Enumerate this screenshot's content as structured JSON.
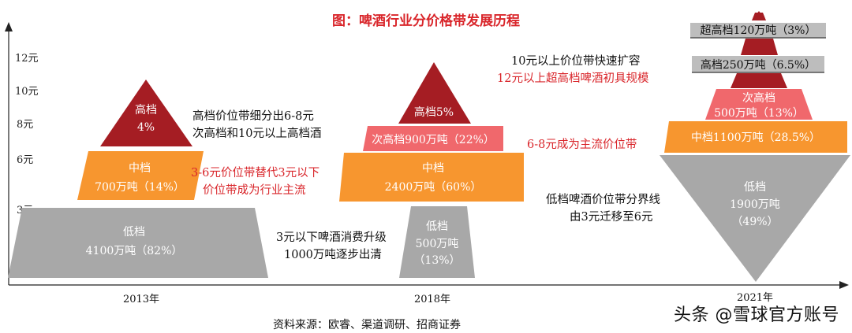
{
  "title": "图：啤酒行业分价格带发展历程",
  "y_ticks": [
    "12元",
    "10元",
    "8元",
    "6元",
    "3元"
  ],
  "years": [
    "2013年",
    "2018年",
    "2021年"
  ],
  "source": "资料来源：欧睿、渠道调研、招商证券",
  "watermark": "头条 @雪球官方账号",
  "colors": {
    "high": "#a51d23",
    "sub_high": "#f0686c",
    "mid": "#f7962f",
    "low": "#a8a8a8",
    "red_text": "#d9262b"
  },
  "y2013": {
    "high": {
      "name": "高档",
      "share": "4%"
    },
    "mid": {
      "name": "中档",
      "detail": "700万吨（14%）"
    },
    "low": {
      "name": "低档",
      "detail": "4100万吨（82%）"
    }
  },
  "y2018": {
    "high": {
      "text": "高档5%"
    },
    "sub_high": {
      "text": "次高档900万吨（22%）"
    },
    "mid": {
      "name": "中档",
      "detail": "2400万吨（60%）"
    },
    "low": {
      "name": "低档",
      "detail1": "500万吨",
      "detail2": "（13%）"
    }
  },
  "y2021": {
    "super_high": {
      "text": "超高档120万吨（3%）"
    },
    "high": {
      "text": "高档250万吨（6.5%）"
    },
    "sub_high": {
      "name": "次高档",
      "detail": "500万吨（13%）"
    },
    "mid": {
      "text": "中档1100万吨（28.5%）"
    },
    "low": {
      "name": "低档",
      "detail1": "1900万吨",
      "detail2": "（49%）"
    }
  },
  "notes": {
    "n1_line1": "高档价位带细分出6-8元",
    "n1_line2": "次高档和10元以上高档酒",
    "n2_line1": "3-6元价位带替代3元以下",
    "n2_line2": "价位带成为行业主流",
    "n3_line1": "3元以下啤酒消费升级",
    "n3_line2": "1000万吨逐步出清",
    "n4_line1": "10元以上价位带快速扩容",
    "n4_line2": "12元以上超高档啤酒初具规模",
    "n5": "6-8元成为主流价位带",
    "n6_line1": "低档啤酒价位带分界线",
    "n6_line2": "由3元迁移至6元"
  }
}
